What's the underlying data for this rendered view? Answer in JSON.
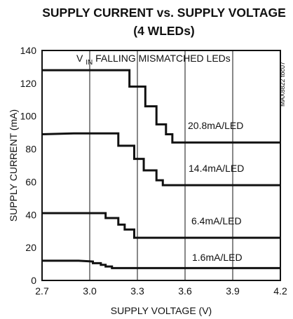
{
  "chart_data": {
    "type": "line",
    "title_line1": "SUPPLY CURRENT vs. SUPPLY VOLTAGE",
    "title_line2": "(4 WLEDs)",
    "xlabel": "SUPPLY VOLTAGE (V)",
    "ylabel": "SUPPLY CURRENT (mA)",
    "xlim": [
      2.7,
      4.2
    ],
    "ylim": [
      0,
      140
    ],
    "x_ticks": [
      2.7,
      3.0,
      3.3,
      3.6,
      3.9,
      4.2
    ],
    "x_tick_labels": [
      "2.7",
      "3.0",
      "3.3",
      "3.6",
      "3.9",
      "4.2"
    ],
    "y_ticks": [
      0,
      20,
      40,
      60,
      80,
      100,
      120,
      140
    ],
    "y_tick_labels": [
      "0",
      "20",
      "40",
      "60",
      "80",
      "100",
      "120",
      "140"
    ],
    "grid": "vertical",
    "annotation_main_prefix": "V",
    "annotation_main_sub": "IN",
    "annotation_main_suffix": " FALLING MISMATCHED LEDs",
    "figure_id": "MAX8822 toc07",
    "series": [
      {
        "name": "20.8mA/LED",
        "points": [
          [
            2.7,
            128
          ],
          [
            2.9,
            128
          ],
          [
            3.25,
            128
          ],
          [
            3.25,
            118
          ],
          [
            3.35,
            118
          ],
          [
            3.35,
            106
          ],
          [
            3.42,
            106
          ],
          [
            3.42,
            95
          ],
          [
            3.48,
            95
          ],
          [
            3.48,
            89
          ],
          [
            3.52,
            89
          ],
          [
            3.52,
            84
          ],
          [
            4.2,
            84
          ]
        ]
      },
      {
        "name": "14.4mA/LED",
        "points": [
          [
            2.7,
            89
          ],
          [
            2.9,
            89.5
          ],
          [
            3.18,
            89.5
          ],
          [
            3.18,
            82
          ],
          [
            3.28,
            82
          ],
          [
            3.28,
            74
          ],
          [
            3.34,
            74
          ],
          [
            3.34,
            67
          ],
          [
            3.42,
            67
          ],
          [
            3.42,
            61
          ],
          [
            3.46,
            61
          ],
          [
            3.46,
            58
          ],
          [
            4.2,
            58
          ]
        ]
      },
      {
        "name": "6.4mA/LED",
        "points": [
          [
            2.7,
            41
          ],
          [
            2.9,
            41
          ],
          [
            3.1,
            41
          ],
          [
            3.1,
            38
          ],
          [
            3.18,
            38
          ],
          [
            3.18,
            34
          ],
          [
            3.22,
            34
          ],
          [
            3.22,
            31
          ],
          [
            3.28,
            31
          ],
          [
            3.28,
            26
          ],
          [
            4.2,
            26
          ]
        ]
      },
      {
        "name": "1.6mA/LED",
        "points": [
          [
            2.7,
            12
          ],
          [
            2.93,
            12
          ],
          [
            3.02,
            11.5
          ],
          [
            3.02,
            10.5
          ],
          [
            3.07,
            10.5
          ],
          [
            3.07,
            9.5
          ],
          [
            3.1,
            9.5
          ],
          [
            3.1,
            8.5
          ],
          [
            3.14,
            8.5
          ],
          [
            3.14,
            7.5
          ],
          [
            4.2,
            7.5
          ]
        ]
      }
    ]
  }
}
